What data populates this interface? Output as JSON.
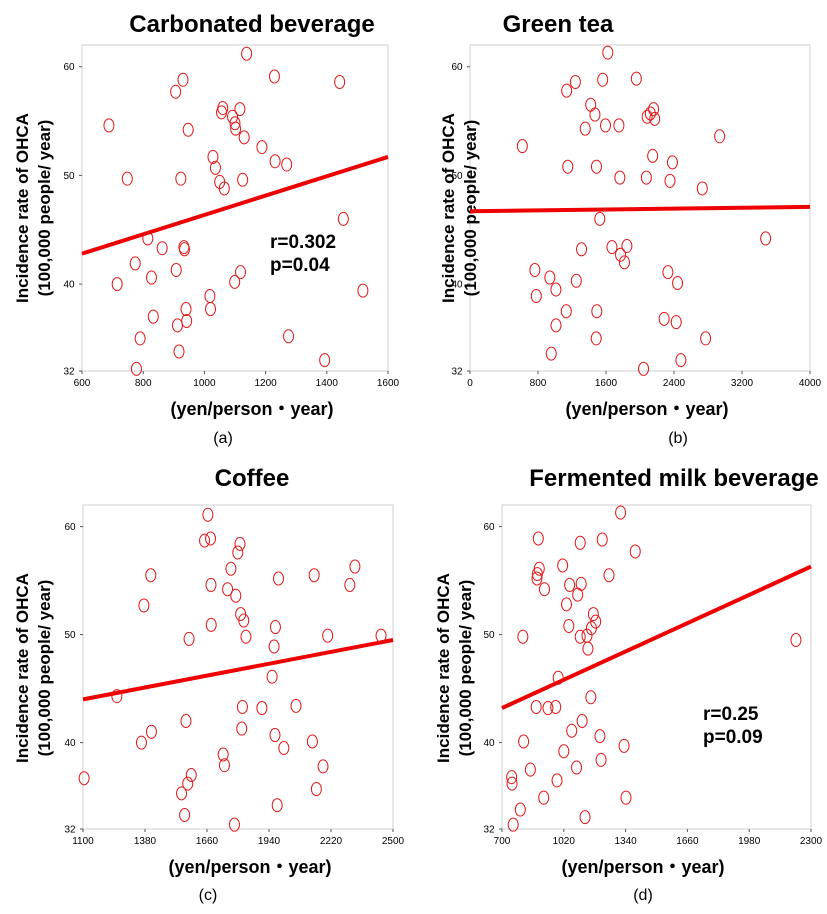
{
  "chart_data": [
    {
      "type": "scatter",
      "panel": "(a)",
      "title": "Carbonated beverage",
      "ylabel_line1": "Incidence rate of OHCA",
      "ylabel_line2": "(100,000 people/ year)",
      "xlabel": "(yen/person・year)",
      "xlim": [
        600,
        1600
      ],
      "ylim": [
        32,
        62
      ],
      "xticks": [
        600,
        800,
        1000,
        1200,
        1400,
        1600
      ],
      "yticks": [
        32,
        40,
        50,
        60
      ],
      "fit_line": [
        [
          600,
          42.8
        ],
        [
          1600,
          51.7
        ]
      ],
      "stats": [
        "r=0.302",
        "p=0.04"
      ],
      "points": [
        [
          688,
          54.6
        ],
        [
          715,
          40.0
        ],
        [
          748,
          49.7
        ],
        [
          774,
          41.9
        ],
        [
          778,
          32.2
        ],
        [
          790,
          35.0
        ],
        [
          815,
          44.2
        ],
        [
          827,
          40.6
        ],
        [
          833,
          37.0
        ],
        [
          862,
          43.3
        ],
        [
          906,
          57.7
        ],
        [
          908,
          41.3
        ],
        [
          912,
          36.2
        ],
        [
          917,
          33.8
        ],
        [
          923,
          49.7
        ],
        [
          930,
          58.8
        ],
        [
          933,
          43.4
        ],
        [
          935,
          43.2
        ],
        [
          940,
          37.7
        ],
        [
          942,
          36.6
        ],
        [
          947,
          54.2
        ],
        [
          1018,
          38.9
        ],
        [
          1020,
          37.7
        ],
        [
          1028,
          51.7
        ],
        [
          1036,
          50.7
        ],
        [
          1050,
          49.4
        ],
        [
          1056,
          55.8
        ],
        [
          1060,
          56.2
        ],
        [
          1065,
          48.8
        ],
        [
          1092,
          55.4
        ],
        [
          1099,
          40.2
        ],
        [
          1100,
          54.8
        ],
        [
          1102,
          54.3
        ],
        [
          1116,
          56.1
        ],
        [
          1118,
          41.1
        ],
        [
          1125,
          49.6
        ],
        [
          1130,
          53.5
        ],
        [
          1138,
          61.2
        ],
        [
          1188,
          52.6
        ],
        [
          1229,
          59.1
        ],
        [
          1231,
          51.3
        ],
        [
          1269,
          51.0
        ],
        [
          1275,
          35.2
        ],
        [
          1393,
          33.0
        ],
        [
          1442,
          58.6
        ],
        [
          1454,
          46.0
        ],
        [
          1518,
          39.4
        ]
      ]
    },
    {
      "type": "scatter",
      "panel": "(b)",
      "title": "Green tea",
      "ylabel_line1": "Incidence rate of OHCA",
      "ylabel_line2": "(100,000 people/ year)",
      "xlabel": "(yen/person・year)",
      "xlim": [
        0,
        4000
      ],
      "ylim": [
        32,
        62
      ],
      "xticks": [
        0,
        800,
        1600,
        2400,
        3200,
        4000
      ],
      "yticks": [
        32,
        40,
        50,
        60
      ],
      "fit_line": [
        [
          0,
          46.7
        ],
        [
          4000,
          47.1
        ]
      ],
      "stats": [],
      "points": [
        [
          616,
          52.7
        ],
        [
          763,
          41.3
        ],
        [
          780,
          38.9
        ],
        [
          939,
          40.6
        ],
        [
          956,
          33.6
        ],
        [
          1011,
          39.5
        ],
        [
          1012,
          36.2
        ],
        [
          1133,
          37.5
        ],
        [
          1137,
          57.8
        ],
        [
          1150,
          50.8
        ],
        [
          1240,
          58.6
        ],
        [
          1251,
          40.3
        ],
        [
          1312,
          43.2
        ],
        [
          1356,
          54.3
        ],
        [
          1420,
          56.5
        ],
        [
          1470,
          55.6
        ],
        [
          1485,
          35.0
        ],
        [
          1488,
          50.8
        ],
        [
          1492,
          37.5
        ],
        [
          1527,
          46.0
        ],
        [
          1561,
          58.8
        ],
        [
          1594,
          54.6
        ],
        [
          1621,
          61.3
        ],
        [
          1670,
          43.4
        ],
        [
          1752,
          54.6
        ],
        [
          1763,
          49.8
        ],
        [
          1771,
          42.7
        ],
        [
          1817,
          42.0
        ],
        [
          1846,
          43.5
        ],
        [
          1957,
          58.9
        ],
        [
          2042,
          32.2
        ],
        [
          2075,
          49.8
        ],
        [
          2084,
          55.4
        ],
        [
          2122,
          55.7
        ],
        [
          2149,
          51.8
        ],
        [
          2160,
          56.1
        ],
        [
          2173,
          55.2
        ],
        [
          2284,
          36.8
        ],
        [
          2328,
          41.1
        ],
        [
          2353,
          49.5
        ],
        [
          2382,
          51.2
        ],
        [
          2426,
          36.5
        ],
        [
          2442,
          40.1
        ],
        [
          2481,
          33.0
        ],
        [
          2733,
          48.8
        ],
        [
          2772,
          35.0
        ],
        [
          2937,
          53.6
        ],
        [
          3478,
          44.2
        ]
      ]
    },
    {
      "type": "scatter",
      "panel": "(c)",
      "title": "Coffee",
      "ylabel_line1": "Incidence rate of OHCA",
      "ylabel_line2": "(100,000 people/ year)",
      "xlabel": "(yen/person・year)",
      "xlim": [
        1100,
        2500
      ],
      "ylim": [
        32,
        62
      ],
      "xticks": [
        1100,
        1380,
        1660,
        1940,
        2220,
        2500
      ],
      "yticks": [
        32,
        40,
        50,
        60
      ],
      "fit_line": [
        [
          1100,
          44.0
        ],
        [
          2500,
          49.5
        ]
      ],
      "stats": [],
      "points": [
        [
          1105,
          36.7
        ],
        [
          1253,
          44.3
        ],
        [
          1364,
          40.0
        ],
        [
          1375,
          52.7
        ],
        [
          1406,
          55.5
        ],
        [
          1409,
          41.0
        ],
        [
          1545,
          35.3
        ],
        [
          1559,
          33.3
        ],
        [
          1565,
          42.0
        ],
        [
          1573,
          36.2
        ],
        [
          1579,
          49.6
        ],
        [
          1589,
          37.0
        ],
        [
          1649,
          58.7
        ],
        [
          1664,
          61.1
        ],
        [
          1676,
          58.9
        ],
        [
          1678,
          54.6
        ],
        [
          1679,
          50.9
        ],
        [
          1733,
          38.9
        ],
        [
          1739,
          37.9
        ],
        [
          1753,
          54.2
        ],
        [
          1768,
          56.1
        ],
        [
          1784,
          32.4
        ],
        [
          1790,
          53.6
        ],
        [
          1799,
          57.6
        ],
        [
          1809,
          58.4
        ],
        [
          1812,
          51.9
        ],
        [
          1817,
          41.3
        ],
        [
          1820,
          43.3
        ],
        [
          1826,
          51.3
        ],
        [
          1836,
          49.8
        ],
        [
          1908,
          43.2
        ],
        [
          1954,
          46.1
        ],
        [
          1963,
          48.9
        ],
        [
          1967,
          40.7
        ],
        [
          1969,
          50.7
        ],
        [
          1977,
          34.2
        ],
        [
          1983,
          55.2
        ],
        [
          2007,
          39.5
        ],
        [
          2062,
          43.4
        ],
        [
          2136,
          40.1
        ],
        [
          2144,
          55.5
        ],
        [
          2154,
          35.7
        ],
        [
          2184,
          37.8
        ],
        [
          2205,
          49.9
        ],
        [
          2305,
          54.6
        ],
        [
          2328,
          56.3
        ],
        [
          2446,
          49.9
        ]
      ]
    },
    {
      "type": "scatter",
      "panel": "(d)",
      "title": "Fermented milk beverage",
      "ylabel_line1": "Incidence rate of OHCA",
      "ylabel_line2": "(100,000 people/ year)",
      "xlabel": "(yen/person・year)",
      "xlim": [
        700,
        2300
      ],
      "ylim": [
        32,
        62
      ],
      "xticks": [
        700,
        1020,
        1340,
        1660,
        1980,
        2300
      ],
      "yticks": [
        32,
        40,
        50,
        60
      ],
      "fit_line": [
        [
          700,
          43.2
        ],
        [
          2300,
          56.3
        ]
      ],
      "stats": [
        "r=0.25",
        "p=0.09"
      ],
      "points": [
        [
          750,
          36.8
        ],
        [
          752,
          36.2
        ],
        [
          758,
          32.4
        ],
        [
          795,
          33.8
        ],
        [
          808,
          49.8
        ],
        [
          812,
          40.1
        ],
        [
          847,
          37.5
        ],
        [
          877,
          43.3
        ],
        [
          881,
          55.2
        ],
        [
          883,
          55.6
        ],
        [
          888,
          58.9
        ],
        [
          893,
          56.1
        ],
        [
          916,
          34.9
        ],
        [
          920,
          54.2
        ],
        [
          938,
          43.2
        ],
        [
          978,
          43.3
        ],
        [
          985,
          36.5
        ],
        [
          991,
          46.0
        ],
        [
          1014,
          56.4
        ],
        [
          1020,
          39.2
        ],
        [
          1034,
          52.8
        ],
        [
          1046,
          50.8
        ],
        [
          1050,
          54.6
        ],
        [
          1061,
          41.1
        ],
        [
          1086,
          37.7
        ],
        [
          1092,
          53.7
        ],
        [
          1105,
          49.8
        ],
        [
          1105,
          58.5
        ],
        [
          1110,
          54.7
        ],
        [
          1115,
          42.0
        ],
        [
          1130,
          33.1
        ],
        [
          1140,
          49.9
        ],
        [
          1145,
          48.7
        ],
        [
          1160,
          44.2
        ],
        [
          1163,
          50.6
        ],
        [
          1173,
          51.9
        ],
        [
          1185,
          51.2
        ],
        [
          1207,
          40.6
        ],
        [
          1213,
          38.4
        ],
        [
          1219,
          58.8
        ],
        [
          1254,
          55.5
        ],
        [
          1314,
          61.3
        ],
        [
          1332,
          39.7
        ],
        [
          1342,
          34.9
        ],
        [
          1390,
          57.7
        ],
        [
          2222,
          49.5
        ]
      ]
    }
  ]
}
